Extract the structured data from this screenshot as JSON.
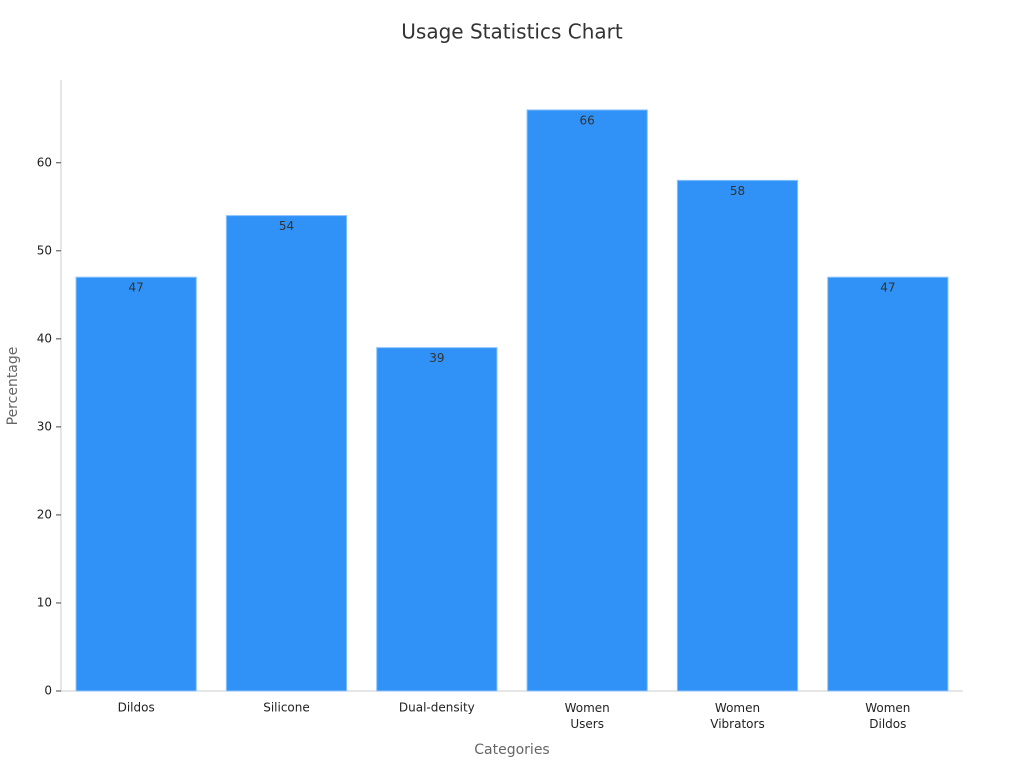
{
  "chart_data": {
    "type": "bar",
    "title": "Usage Statistics Chart",
    "x_label": "Categories",
    "y_label": "Percentage",
    "categories": [
      "Dildos",
      "Silicone",
      "Dual-density",
      "Women\nUsers",
      "Women\nVibrators",
      "Women\nDildos"
    ],
    "values": [
      47,
      54,
      39,
      66,
      58,
      47
    ],
    "color": "#3092f7",
    "ylim": [
      0,
      69.4
    ],
    "yticks": [
      0,
      10,
      20,
      30,
      40,
      50,
      60
    ],
    "grid": false
  }
}
